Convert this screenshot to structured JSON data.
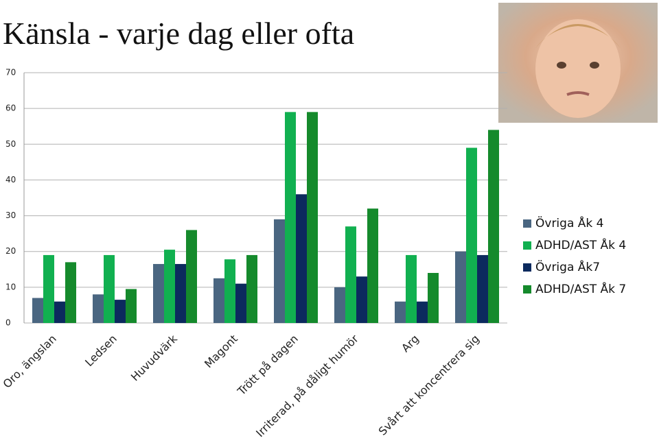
{
  "chart_data": {
    "type": "bar",
    "title": "Känsla - varje dag eller  ofta",
    "categories": [
      "Oro, ängslan",
      "Ledsen",
      "Huvudvärk",
      "Magont",
      "Trött på dagen",
      "Irriterad, på dåligt humör",
      "Arg",
      "Svårt att koncentrera sig"
    ],
    "series": [
      {
        "name": "Övriga Åk 4",
        "color": "#4a6681",
        "values": [
          7,
          8,
          16.5,
          12.5,
          29,
          10,
          6,
          20
        ]
      },
      {
        "name": "ADHD/AST Åk 4",
        "color": "#11b050",
        "values": [
          19,
          19,
          20.5,
          17.8,
          59,
          27,
          19,
          49
        ]
      },
      {
        "name": "Övriga Åk7",
        "color": "#0c2a5e",
        "values": [
          6,
          6.5,
          16.5,
          11,
          36,
          13,
          6,
          19
        ]
      },
      {
        "name": "ADHD/AST Åk 7",
        "color": "#158a2c",
        "values": [
          17,
          9.5,
          26,
          19,
          59,
          32,
          14,
          54
        ]
      }
    ],
    "ylim": [
      0,
      70
    ],
    "yticks": [
      0,
      10,
      20,
      30,
      40,
      50,
      60,
      70
    ],
    "grid": true,
    "legend": "right"
  }
}
